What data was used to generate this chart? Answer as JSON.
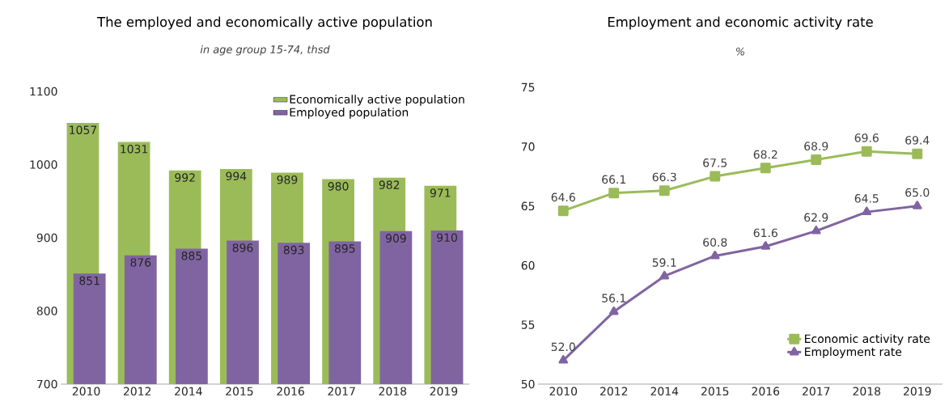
{
  "chart_data": [
    {
      "type": "bar",
      "title": "The employed and economically active population",
      "subtitle": "in age group 15-74, thsd",
      "categories": [
        "2010",
        "2012",
        "2014",
        "2015",
        "2016",
        "2017",
        "2018",
        "2019"
      ],
      "series": [
        {
          "name": "Economically active population",
          "color": "#9bbb59",
          "values": [
            1057,
            1031,
            992,
            994,
            989,
            980,
            982,
            971
          ]
        },
        {
          "name": "Employed population",
          "color": "#8064a2",
          "values": [
            851,
            876,
            885,
            896,
            893,
            895,
            909,
            910
          ]
        }
      ],
      "ylim": [
        700,
        1100
      ],
      "yticks": [
        700,
        800,
        900,
        1000,
        1100
      ],
      "data_labels": true,
      "legend": "top right"
    },
    {
      "type": "line",
      "title": "Employment and economic activity rate",
      "subtitle": "%",
      "categories": [
        "2010",
        "2012",
        "2014",
        "2015",
        "2016",
        "2017",
        "2018",
        "2019"
      ],
      "series": [
        {
          "name": "Economic activity rate",
          "color": "#9bbb59",
          "marker": "square",
          "values": [
            64.6,
            66.1,
            66.3,
            67.5,
            68.2,
            68.9,
            69.6,
            69.4
          ]
        },
        {
          "name": "Employment rate",
          "color": "#8064a2",
          "marker": "triangle",
          "values": [
            52.0,
            56.1,
            59.1,
            60.8,
            61.6,
            62.9,
            64.5,
            65.0
          ],
          "value_labels": [
            "52.0",
            "56.1",
            "59.1",
            "60.8",
            "61.6",
            "62.9",
            "64.5",
            "65.0"
          ]
        }
      ],
      "ylim": [
        50,
        75
      ],
      "yticks": [
        50,
        55,
        60,
        65,
        70,
        75
      ],
      "data_labels": true,
      "legend": "bottom right"
    }
  ]
}
